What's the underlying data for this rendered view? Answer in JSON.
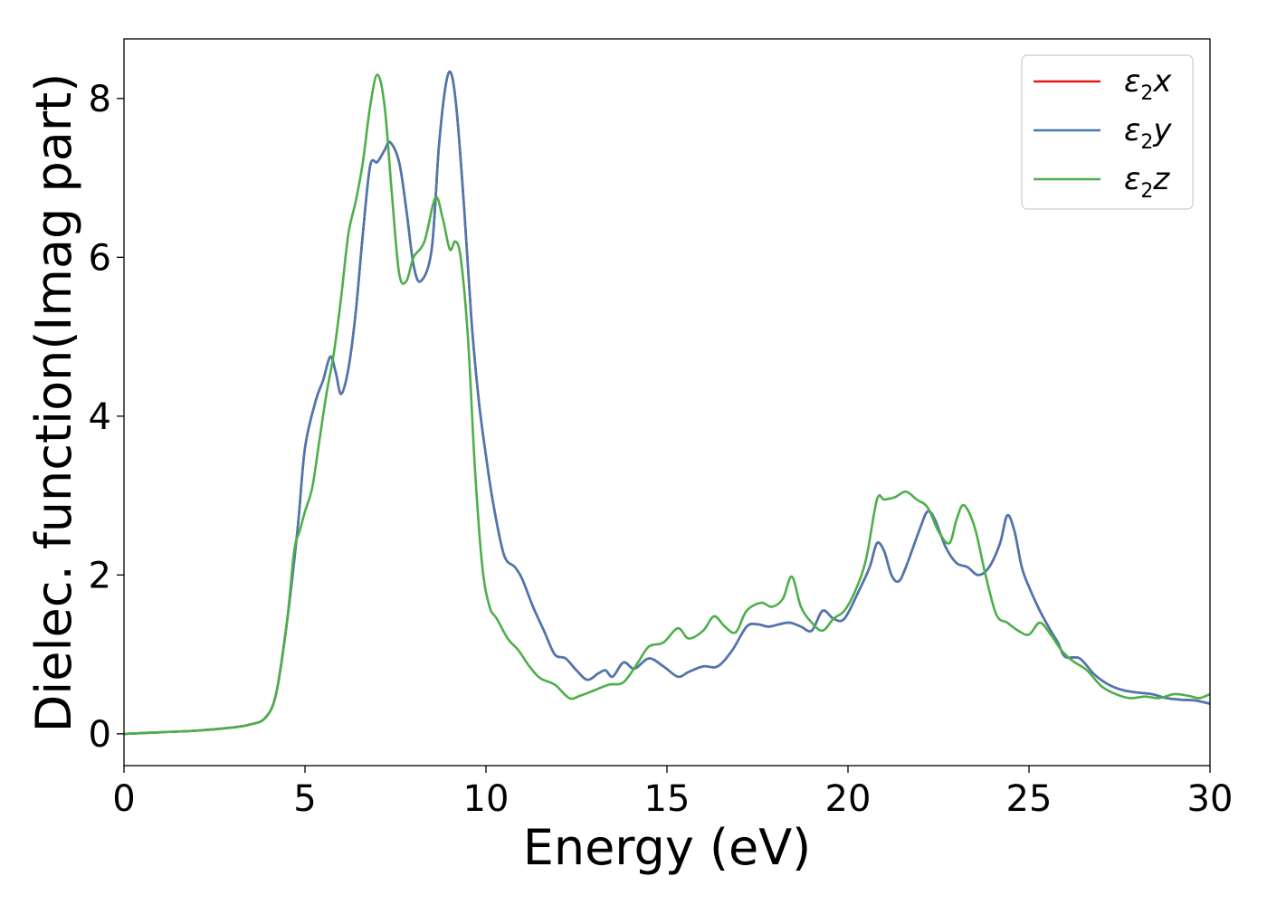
{
  "chart_data": {
    "type": "line",
    "title": "",
    "xlabel": "Energy (eV)",
    "ylabel": "Dielec. function(Imag part)",
    "xlim": [
      0,
      30
    ],
    "ylim": [
      -0.4,
      8.75
    ],
    "xticks": [
      0,
      5,
      10,
      15,
      20,
      25,
      30
    ],
    "xtick_labels": [
      "0",
      "5",
      "10",
      "15",
      "20",
      "25",
      "30"
    ],
    "yticks": [
      0,
      2,
      4,
      6,
      8
    ],
    "ytick_labels": [
      "0",
      "2",
      "4",
      "6",
      "8"
    ],
    "grid": false,
    "legend_position": "top-right",
    "series": [
      {
        "name": "ε2x",
        "legend_main": "ε",
        "legend_sub": "2",
        "legend_var": "x",
        "color": "#e41a1c",
        "x": [
          0,
          1,
          2,
          3,
          3.5,
          3.9,
          4.2,
          4.5,
          4.8,
          5.0,
          5.3,
          5.5,
          5.7,
          5.85,
          6.0,
          6.2,
          6.4,
          6.6,
          6.8,
          7.0,
          7.2,
          7.35,
          7.6,
          7.8,
          8.0,
          8.2,
          8.5,
          8.7,
          8.9,
          9.05,
          9.2,
          9.4,
          9.6,
          9.8,
          10.0,
          10.2,
          10.5,
          10.8,
          11.0,
          11.3,
          11.6,
          11.9,
          12.2,
          12.5,
          12.8,
          13.1,
          13.3,
          13.5,
          13.8,
          14.1,
          14.5,
          14.9,
          15.3,
          15.6,
          16.0,
          16.4,
          16.8,
          17.2,
          17.5,
          17.8,
          18.1,
          18.4,
          18.7,
          19.0,
          19.3,
          19.6,
          19.9,
          20.3,
          20.6,
          20.8,
          21.0,
          21.2,
          21.4,
          21.6,
          22.0,
          22.2,
          22.4,
          22.7,
          23.0,
          23.3,
          23.6,
          23.9,
          24.2,
          24.4,
          24.6,
          24.8,
          25.0,
          25.3,
          25.6,
          25.8,
          26.0,
          26.4,
          26.8,
          27.2,
          27.6,
          28.0,
          28.4,
          28.8,
          29.2,
          29.6,
          30.0
        ],
        "y": [
          0.0,
          0.02,
          0.04,
          0.08,
          0.12,
          0.2,
          0.5,
          1.4,
          2.6,
          3.6,
          4.2,
          4.45,
          4.75,
          4.55,
          4.28,
          4.6,
          5.3,
          6.3,
          7.15,
          7.2,
          7.35,
          7.45,
          7.2,
          6.6,
          5.9,
          5.7,
          6.1,
          7.4,
          8.2,
          8.3,
          7.8,
          6.6,
          5.2,
          4.2,
          3.5,
          2.9,
          2.25,
          2.1,
          1.95,
          1.6,
          1.3,
          1.0,
          0.95,
          0.8,
          0.68,
          0.76,
          0.8,
          0.72,
          0.9,
          0.82,
          0.95,
          0.85,
          0.72,
          0.78,
          0.85,
          0.85,
          1.05,
          1.35,
          1.38,
          1.35,
          1.38,
          1.4,
          1.35,
          1.3,
          1.55,
          1.45,
          1.45,
          1.8,
          2.1,
          2.4,
          2.3,
          2.0,
          1.92,
          2.1,
          2.6,
          2.8,
          2.7,
          2.35,
          2.15,
          2.1,
          2.0,
          2.1,
          2.4,
          2.75,
          2.55,
          2.1,
          1.85,
          1.55,
          1.3,
          1.15,
          0.97,
          0.95,
          0.75,
          0.62,
          0.55,
          0.52,
          0.5,
          0.45,
          0.43,
          0.42,
          0.38
        ]
      },
      {
        "name": "ε2y",
        "legend_main": "ε",
        "legend_sub": "2",
        "legend_var": "y",
        "color": "#4a78b0",
        "x": [
          0,
          1,
          2,
          3,
          3.5,
          3.9,
          4.2,
          4.5,
          4.8,
          5.0,
          5.3,
          5.5,
          5.7,
          5.85,
          6.0,
          6.2,
          6.4,
          6.6,
          6.8,
          7.0,
          7.2,
          7.35,
          7.6,
          7.8,
          8.0,
          8.2,
          8.5,
          8.7,
          8.9,
          9.05,
          9.2,
          9.4,
          9.6,
          9.8,
          10.0,
          10.2,
          10.5,
          10.8,
          11.0,
          11.3,
          11.6,
          11.9,
          12.2,
          12.5,
          12.8,
          13.1,
          13.3,
          13.5,
          13.8,
          14.1,
          14.5,
          14.9,
          15.3,
          15.6,
          16.0,
          16.4,
          16.8,
          17.2,
          17.5,
          17.8,
          18.1,
          18.4,
          18.7,
          19.0,
          19.3,
          19.6,
          19.9,
          20.3,
          20.6,
          20.8,
          21.0,
          21.2,
          21.4,
          21.6,
          22.0,
          22.2,
          22.4,
          22.7,
          23.0,
          23.3,
          23.6,
          23.9,
          24.2,
          24.4,
          24.6,
          24.8,
          25.0,
          25.3,
          25.6,
          25.8,
          26.0,
          26.4,
          26.8,
          27.2,
          27.6,
          28.0,
          28.4,
          28.8,
          29.2,
          29.6,
          30.0
        ],
        "y": [
          0.0,
          0.02,
          0.04,
          0.08,
          0.12,
          0.2,
          0.5,
          1.4,
          2.6,
          3.6,
          4.2,
          4.45,
          4.75,
          4.55,
          4.28,
          4.6,
          5.3,
          6.3,
          7.15,
          7.2,
          7.35,
          7.45,
          7.2,
          6.6,
          5.9,
          5.7,
          6.1,
          7.4,
          8.2,
          8.3,
          7.8,
          6.6,
          5.2,
          4.2,
          3.5,
          2.9,
          2.25,
          2.1,
          1.95,
          1.6,
          1.3,
          1.0,
          0.95,
          0.8,
          0.68,
          0.76,
          0.8,
          0.72,
          0.9,
          0.82,
          0.95,
          0.85,
          0.72,
          0.78,
          0.85,
          0.85,
          1.05,
          1.35,
          1.38,
          1.35,
          1.38,
          1.4,
          1.35,
          1.3,
          1.55,
          1.45,
          1.45,
          1.8,
          2.1,
          2.4,
          2.3,
          2.0,
          1.92,
          2.1,
          2.6,
          2.8,
          2.7,
          2.35,
          2.15,
          2.1,
          2.0,
          2.1,
          2.4,
          2.75,
          2.55,
          2.1,
          1.85,
          1.55,
          1.3,
          1.15,
          0.97,
          0.95,
          0.75,
          0.62,
          0.55,
          0.52,
          0.5,
          0.45,
          0.43,
          0.42,
          0.38
        ]
      },
      {
        "name": "ε2z",
        "legend_main": "ε",
        "legend_sub": "2",
        "legend_var": "z",
        "color": "#4daf4a",
        "x": [
          0,
          1,
          2,
          3,
          3.5,
          3.9,
          4.2,
          4.5,
          4.7,
          4.85,
          5.0,
          5.2,
          5.4,
          5.6,
          5.8,
          6.0,
          6.2,
          6.4,
          6.6,
          6.8,
          7.0,
          7.2,
          7.4,
          7.6,
          7.8,
          8.0,
          8.3,
          8.6,
          8.8,
          9.0,
          9.15,
          9.3,
          9.5,
          9.7,
          9.9,
          10.1,
          10.3,
          10.6,
          10.9,
          11.2,
          11.5,
          11.9,
          12.3,
          12.6,
          13.0,
          13.4,
          13.8,
          14.2,
          14.5,
          14.9,
          15.3,
          15.6,
          16.0,
          16.3,
          16.6,
          16.9,
          17.2,
          17.6,
          17.9,
          18.2,
          18.45,
          18.7,
          19.0,
          19.3,
          19.6,
          19.9,
          20.2,
          20.5,
          20.8,
          21.0,
          21.3,
          21.6,
          21.9,
          22.2,
          22.5,
          22.8,
          23.0,
          23.2,
          23.5,
          23.8,
          24.1,
          24.4,
          24.7,
          25.0,
          25.3,
          25.6,
          25.9,
          26.2,
          26.6,
          27.0,
          27.4,
          27.8,
          28.2,
          28.6,
          29.0,
          29.4,
          29.7,
          30.0
        ],
        "y": [
          0.0,
          0.02,
          0.04,
          0.08,
          0.12,
          0.2,
          0.5,
          1.4,
          2.3,
          2.55,
          2.8,
          3.1,
          3.7,
          4.3,
          4.8,
          5.5,
          6.3,
          6.7,
          7.2,
          7.9,
          8.3,
          7.9,
          6.8,
          5.8,
          5.7,
          6.0,
          6.2,
          6.75,
          6.5,
          6.1,
          6.2,
          6.0,
          5.0,
          3.3,
          2.1,
          1.6,
          1.45,
          1.2,
          1.05,
          0.85,
          0.7,
          0.62,
          0.45,
          0.48,
          0.55,
          0.62,
          0.65,
          0.9,
          1.1,
          1.15,
          1.33,
          1.2,
          1.3,
          1.48,
          1.35,
          1.28,
          1.55,
          1.65,
          1.6,
          1.7,
          1.98,
          1.6,
          1.4,
          1.3,
          1.45,
          1.55,
          1.8,
          2.2,
          2.95,
          2.95,
          2.98,
          3.05,
          2.95,
          2.85,
          2.55,
          2.4,
          2.7,
          2.88,
          2.6,
          2.0,
          1.5,
          1.4,
          1.3,
          1.25,
          1.4,
          1.25,
          1.05,
          0.92,
          0.8,
          0.6,
          0.5,
          0.45,
          0.47,
          0.45,
          0.5,
          0.48,
          0.45,
          0.5
        ]
      }
    ]
  }
}
